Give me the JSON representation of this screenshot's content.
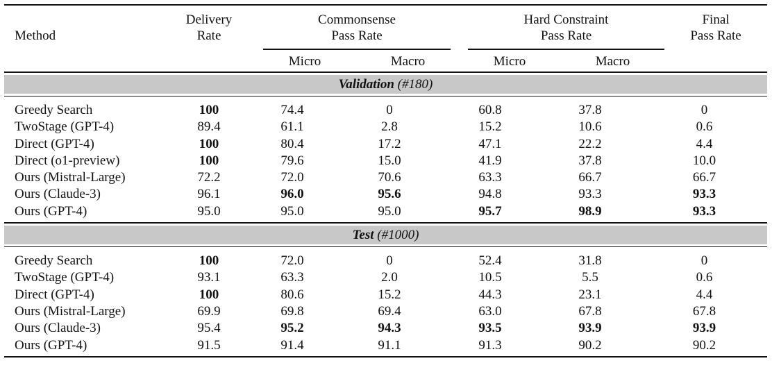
{
  "header": {
    "method": "Method",
    "delivery": [
      "Delivery",
      "Rate"
    ],
    "commonsense": [
      "Commonsense",
      "Pass Rate"
    ],
    "hard": [
      "Hard Constraint",
      "Pass Rate"
    ],
    "final": [
      "Final",
      "Pass Rate"
    ],
    "micro": "Micro",
    "macro": "Macro"
  },
  "sections": [
    {
      "title_bold": "Validation",
      "title_rest": " (#180)",
      "rows": [
        {
          "method": "Greedy Search",
          "cells": [
            "100",
            "74.4",
            "0",
            "60.8",
            "37.8",
            "0"
          ],
          "bold": [
            0
          ]
        },
        {
          "method": "TwoStage (GPT-4)",
          "cells": [
            "89.4",
            "61.1",
            "2.8",
            "15.2",
            "10.6",
            "0.6"
          ],
          "bold": []
        },
        {
          "method": "Direct (GPT-4)",
          "cells": [
            "100",
            "80.4",
            "17.2",
            "47.1",
            "22.2",
            "4.4"
          ],
          "bold": [
            0
          ]
        },
        {
          "method": "Direct (o1-preview)",
          "cells": [
            "100",
            "79.6",
            "15.0",
            "41.9",
            "37.8",
            "10.0"
          ],
          "bold": [
            0
          ]
        },
        {
          "method": "Ours (Mistral-Large)",
          "cells": [
            "72.2",
            "72.0",
            "70.6",
            "63.3",
            "66.7",
            "66.7"
          ],
          "bold": []
        },
        {
          "method": "Ours (Claude-3)",
          "cells": [
            "96.1",
            "96.0",
            "95.6",
            "94.8",
            "93.3",
            "93.3"
          ],
          "bold": [
            1,
            2,
            5
          ]
        },
        {
          "method": "Ours (GPT-4)",
          "cells": [
            "95.0",
            "95.0",
            "95.0",
            "95.7",
            "98.9",
            "93.3"
          ],
          "bold": [
            3,
            4,
            5
          ]
        }
      ]
    },
    {
      "title_bold": "Test",
      "title_rest": " (#1000)",
      "rows": [
        {
          "method": "Greedy Search",
          "cells": [
            "100",
            "72.0",
            "0",
            "52.4",
            "31.8",
            "0"
          ],
          "bold": [
            0
          ]
        },
        {
          "method": "TwoStage (GPT-4)",
          "cells": [
            "93.1",
            "63.3",
            "2.0",
            "10.5",
            "5.5",
            "0.6"
          ],
          "bold": []
        },
        {
          "method": "Direct (GPT-4)",
          "cells": [
            "100",
            "80.6",
            "15.2",
            "44.3",
            "23.1",
            "4.4"
          ],
          "bold": [
            0
          ]
        },
        {
          "method": "Ours (Mistral-Large)",
          "cells": [
            "69.9",
            "69.8",
            "69.4",
            "63.0",
            "67.8",
            "67.8"
          ],
          "bold": []
        },
        {
          "method": "Ours (Claude-3)",
          "cells": [
            "95.4",
            "95.2",
            "94.3",
            "93.5",
            "93.9",
            "93.9"
          ],
          "bold": [
            1,
            2,
            3,
            4,
            5
          ]
        },
        {
          "method": "Ours (GPT-4)",
          "cells": [
            "91.5",
            "91.4",
            "91.1",
            "91.3",
            "90.2",
            "90.2"
          ],
          "bold": []
        }
      ]
    }
  ]
}
